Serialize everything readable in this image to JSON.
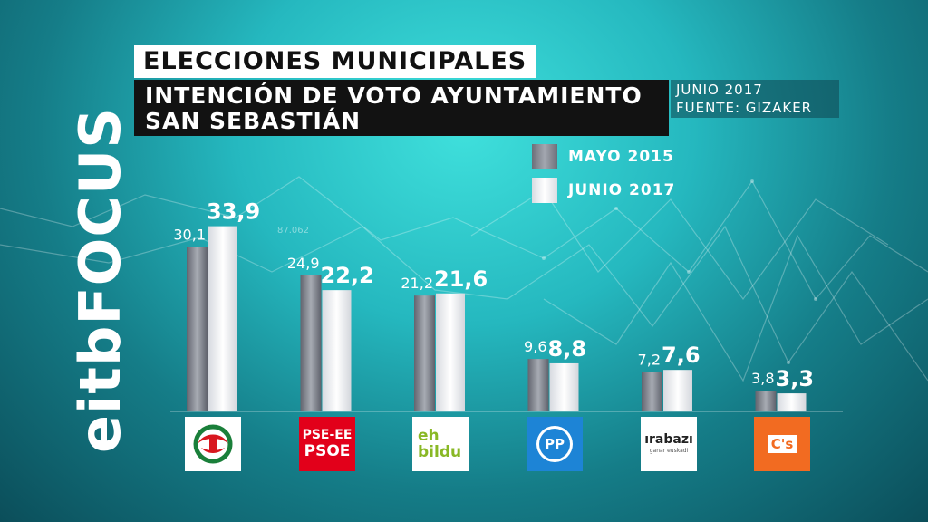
{
  "header": {
    "title": "ELECCIONES MUNICIPALES",
    "subtitle_line1": "INTENCIÓN DE VOTO AYUNTAMIENTO",
    "subtitle_line2": "SAN SEBASTIÁN",
    "date": "JUNIO 2017",
    "source": "FUENTE: GIZAKER"
  },
  "brand": {
    "name": "eitbFOCUS"
  },
  "background_decoration": {
    "text": "87.062"
  },
  "colors": {
    "series_2015": "#8b8e97",
    "series_2017": "#ffffff",
    "pnv": "#d8171f",
    "pse": "#e2001a",
    "bildu": "#89b825",
    "pp": "#1d84d6",
    "cs": "#f26b21"
  },
  "parties": [
    {
      "logo_icon": "pnv-logo-icon",
      "logo_text": ""
    },
    {
      "logo_icon": "pse-psoe-logo-icon",
      "logo_text_1": "PSE-EE",
      "logo_text_2": "PSOE"
    },
    {
      "logo_icon": "eh-bildu-logo-icon",
      "logo_text_1": "eh",
      "logo_text_2": "bildu"
    },
    {
      "logo_icon": "pp-logo-icon",
      "logo_text": "PP"
    },
    {
      "logo_icon": "irabazi-logo-icon",
      "logo_text_1": "ırabazı",
      "logo_text_2": "ganar euskadi"
    },
    {
      "logo_icon": "ciudadanos-logo-icon",
      "logo_text": "C's"
    }
  ],
  "chart_data": {
    "type": "bar",
    "categories": [
      "PNV",
      "PSE-EE PSOE",
      "EH Bildu",
      "PP",
      "Irabazi",
      "C's"
    ],
    "category_labels_shown_as_logos": true,
    "series": [
      {
        "name": "MAYO 2015",
        "values": [
          30.1,
          24.9,
          21.2,
          9.6,
          7.2,
          3.8
        ],
        "labels": [
          "30,1",
          "24,9",
          "21,2",
          "9,6",
          "7,2",
          "3,8"
        ]
      },
      {
        "name": "JUNIO 2017",
        "values": [
          33.9,
          22.2,
          21.6,
          8.8,
          7.6,
          3.3
        ],
        "labels": [
          "33,9",
          "22,2",
          "21,6",
          "8,8",
          "7,6",
          "3,3"
        ]
      }
    ],
    "legend_placement": "top-right",
    "grid": false,
    "ylim": [
      0,
      34
    ]
  }
}
